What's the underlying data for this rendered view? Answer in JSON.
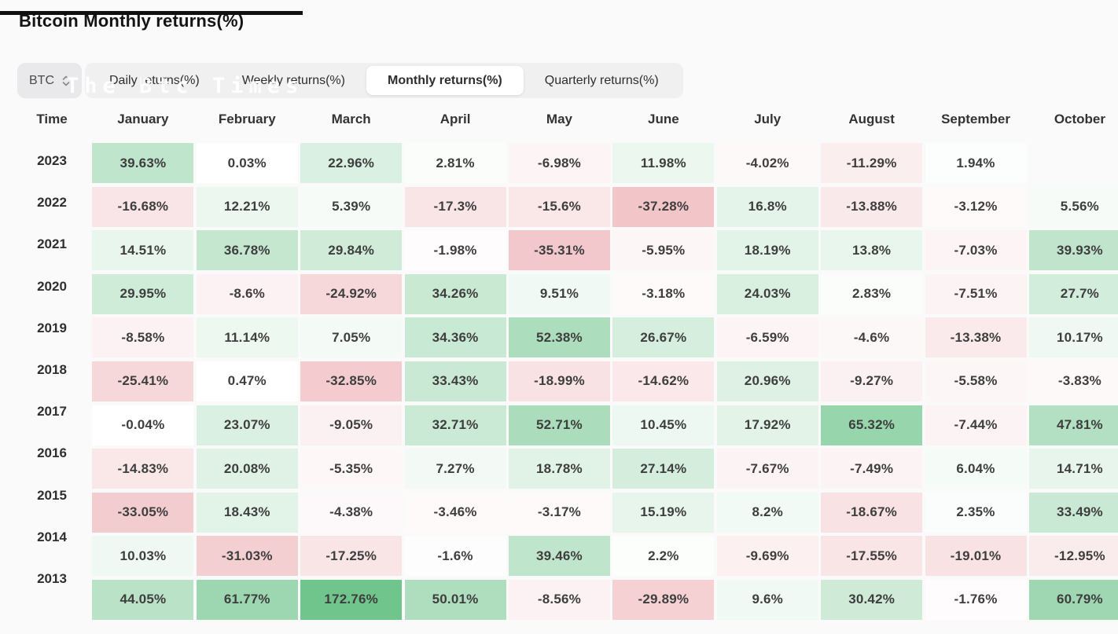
{
  "page": {
    "title": "Bitcoin Monthly returns(%)",
    "watermark": "The Btc Times",
    "background": "#fafafa"
  },
  "toolbar": {
    "asset_selector": {
      "label": "BTC",
      "icon": "updown-chevron-icon"
    },
    "tabs": [
      {
        "label": "Daily returns(%)",
        "active": false
      },
      {
        "label": "Weekly returns(%)",
        "active": false
      },
      {
        "label": "Monthly returns(%)",
        "active": true
      },
      {
        "label": "Quarterly returns(%)",
        "active": false
      }
    ]
  },
  "chart_data": {
    "type": "heatmap",
    "title": "Bitcoin Monthly returns(%)",
    "unit": "%",
    "row_header": "Time",
    "columns": [
      "January",
      "February",
      "March",
      "April",
      "May",
      "June",
      "July",
      "August",
      "September",
      "October"
    ],
    "rows": [
      {
        "year": "2023",
        "values": [
          39.63,
          0.03,
          22.96,
          2.81,
          -6.98,
          11.98,
          -4.02,
          -11.29,
          1.94,
          null
        ]
      },
      {
        "year": "2022",
        "values": [
          -16.68,
          12.21,
          5.39,
          -17.3,
          -15.6,
          -37.28,
          16.8,
          -13.88,
          -3.12,
          5.56
        ]
      },
      {
        "year": "2021",
        "values": [
          14.51,
          36.78,
          29.84,
          -1.98,
          -35.31,
          -5.95,
          18.19,
          13.8,
          -7.03,
          39.93
        ]
      },
      {
        "year": "2020",
        "values": [
          29.95,
          -8.6,
          -24.92,
          34.26,
          9.51,
          -3.18,
          24.03,
          2.83,
          -7.51,
          27.7
        ]
      },
      {
        "year": "2019",
        "values": [
          -8.58,
          11.14,
          7.05,
          34.36,
          52.38,
          26.67,
          -6.59,
          -4.6,
          -13.38,
          10.17
        ]
      },
      {
        "year": "2018",
        "values": [
          -25.41,
          0.47,
          -32.85,
          33.43,
          -18.99,
          -14.62,
          20.96,
          -9.27,
          -5.58,
          -3.83
        ]
      },
      {
        "year": "2017",
        "values": [
          -0.04,
          23.07,
          -9.05,
          32.71,
          52.71,
          10.45,
          17.92,
          65.32,
          -7.44,
          47.81
        ]
      },
      {
        "year": "2016",
        "values": [
          -14.83,
          20.08,
          -5.35,
          7.27,
          18.78,
          27.14,
          -7.67,
          -7.49,
          6.04,
          14.71
        ]
      },
      {
        "year": "2015",
        "values": [
          -33.05,
          18.43,
          -4.38,
          -3.46,
          -3.17,
          15.19,
          8.2,
          -18.67,
          2.35,
          33.49
        ]
      },
      {
        "year": "2014",
        "values": [
          10.03,
          -31.03,
          -17.25,
          -1.6,
          39.46,
          2.2,
          -9.69,
          -17.55,
          -19.01,
          -12.95
        ]
      },
      {
        "year": "2013",
        "values": [
          44.05,
          61.77,
          172.76,
          50.01,
          -8.56,
          -29.89,
          9.6,
          30.42,
          -1.76,
          60.79
        ]
      }
    ],
    "color_scale": {
      "positive": "#60be80",
      "negative": "#dc646e",
      "neutral": "#ffffff",
      "saturation_cap": 90
    },
    "legend_position": "none",
    "grid": false
  }
}
